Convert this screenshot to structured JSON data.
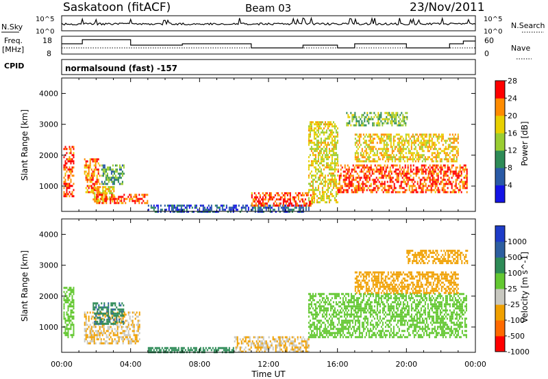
{
  "header": {
    "title": "Saskatoon (fitACF)",
    "beam": "Beam 03",
    "date": "23/Nov/2011"
  },
  "noise_panel": {
    "left_label": "N.Sky",
    "right_label": "N.Search",
    "left_ticks": [
      "10^5",
      "10^0"
    ],
    "right_ticks": [
      "10^5",
      "10^0"
    ]
  },
  "freq_panel": {
    "left_label_line1": "Freq.",
    "left_label_line2": "[MHz]",
    "left_ticks": [
      "18",
      "8"
    ],
    "right_ticks": [
      "60",
      "0"
    ],
    "right_label": "Nave"
  },
  "cpid": {
    "label": "CPID",
    "value": "normalsound (fast) -157"
  },
  "chart_data": [
    {
      "type": "heatmap",
      "name": "Power",
      "ylabel": "Slant Range [km]",
      "ylim": [
        180,
        4500
      ],
      "yticks": [
        1000,
        2000,
        3000,
        4000
      ],
      "xlim": [
        0,
        24
      ],
      "xticks": [
        "00:00",
        "04:00",
        "08:00",
        "12:00",
        "16:00",
        "20:00",
        "00:00"
      ],
      "colorbar": {
        "label": "Power [dB]",
        "ticks": [
          "4",
          "8",
          "12",
          "16",
          "20",
          "24",
          "28"
        ],
        "range": [
          0,
          30
        ],
        "colors": [
          "#1414e6",
          "#2a5aa6",
          "#2e8b57",
          "#9acd32",
          "#e8d000",
          "#ff8c00",
          "#ff0000"
        ]
      },
      "echo_regions": [
        {
          "t0": 0.1,
          "t1": 0.7,
          "r0": 700,
          "r1": 2300,
          "level": 26
        },
        {
          "t0": 1.3,
          "t1": 2.2,
          "r0": 800,
          "r1": 1900,
          "level": 24
        },
        {
          "t0": 1.8,
          "t1": 3.0,
          "r0": 500,
          "r1": 1000,
          "level": 20
        },
        {
          "t0": 2.0,
          "t1": 5.0,
          "r0": 450,
          "r1": 750,
          "level": 26
        },
        {
          "t0": 2.3,
          "t1": 3.6,
          "r0": 1100,
          "r1": 1700,
          "level": 12
        },
        {
          "t0": 5.0,
          "t1": 14.5,
          "r0": 200,
          "r1": 400,
          "level": 6
        },
        {
          "t0": 11.0,
          "t1": 14.5,
          "r0": 400,
          "r1": 800,
          "level": 26
        },
        {
          "t0": 14.3,
          "t1": 16.0,
          "r0": 500,
          "r1": 3100,
          "level": 18
        },
        {
          "t0": 16.0,
          "t1": 23.5,
          "r0": 800,
          "r1": 1700,
          "level": 26
        },
        {
          "t0": 17.0,
          "t1": 23.0,
          "r0": 1800,
          "r1": 2700,
          "level": 20
        },
        {
          "t0": 16.5,
          "t1": 20.0,
          "r0": 3000,
          "r1": 3400,
          "level": 14
        }
      ]
    },
    {
      "type": "heatmap",
      "name": "Velocity",
      "ylabel": "Slant Range [km]",
      "ylim": [
        180,
        4500
      ],
      "yticks": [
        1000,
        2000,
        3000,
        4000
      ],
      "xlim": [
        0,
        24
      ],
      "xlabel": "Time UT",
      "xticks": [
        "00:00",
        "04:00",
        "08:00",
        "12:00",
        "16:00",
        "20:00",
        "00:00"
      ],
      "colorbar": {
        "label": "Velocity [m s^-1]",
        "ticks": [
          "1000",
          "500",
          "100",
          "25",
          "-25",
          "-100",
          "-500",
          "-1000"
        ],
        "colors": [
          "#1e3cc8",
          "#2e5fa0",
          "#2e8b57",
          "#64c832",
          "#c8c8c0",
          "#f0a000",
          "#ff6a00",
          "#ff0000"
        ]
      },
      "echo_regions": [
        {
          "t0": 0.1,
          "t1": 0.7,
          "r0": 700,
          "r1": 2300,
          "level": 0
        },
        {
          "t0": 1.3,
          "t1": 4.5,
          "r0": 500,
          "r1": 1500,
          "level": -100
        },
        {
          "t0": 1.8,
          "t1": 3.6,
          "r0": 1100,
          "r1": 1800,
          "level": 80
        },
        {
          "t0": 5.0,
          "t1": 10.0,
          "r0": 200,
          "r1": 350,
          "level": 60
        },
        {
          "t0": 10.0,
          "t1": 14.3,
          "r0": 200,
          "r1": 700,
          "level": -100
        },
        {
          "t0": 14.3,
          "t1": 23.5,
          "r0": 700,
          "r1": 2100,
          "level": 0
        },
        {
          "t0": 17.0,
          "t1": 23.0,
          "r0": 2100,
          "r1": 2800,
          "level": -300
        },
        {
          "t0": 20.0,
          "t1": 23.5,
          "r0": 3100,
          "r1": 3500,
          "level": -300
        }
      ]
    }
  ]
}
